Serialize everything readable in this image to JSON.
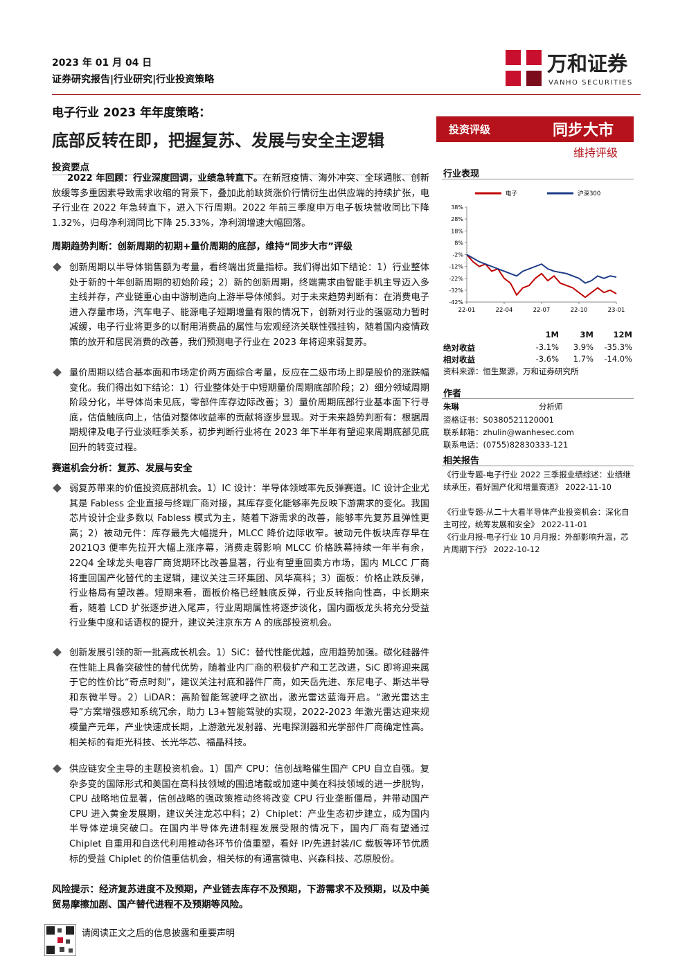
{
  "header": {
    "date": "2023 年 01 月 04 日",
    "category": "证券研究报告|行业研究|行业投资策略",
    "logo_name": "万和证券",
    "logo_en": "VANHO SECURITIES"
  },
  "title": {
    "line1": "电子行业 2023 年年度策略：",
    "line2": "底部反转在即，把握复苏、发展与安全主逻辑"
  },
  "summary": {
    "heading": "投资要点",
    "review": {
      "lead": "2022 年回顾：行业深度回调，业绩急转直下。",
      "text": "在新冠疫情、海外冲突、全球通胀、创新放缓等多重因素导致需求收缩的背景下，叠加此前缺货涨价行情衍生出供应端的持续扩张，电子行业在 2022 年急转直下，进入下行周期。2022 年前三季度申万电子板块营收同比下降 1.32%，归母净利润同比下降 25.33%，净利润增速大幅回落。"
    },
    "sections": [
      {
        "heading": "周期趋势判断：创新周期的初期+量价周期的底部，维持“同步大市”评级",
        "bullets": [
          "创新周期以半导体销售额为考量，看终端出货量指标。我们得出如下结论：1）行业整体处于新的十年创新周期的初始阶段；2）新的创新周期，终端需求由智能手机主导迈入多主线并存，产业链重心由中游制造向上游半导体倾斜。对于未来趋势判断有：在消费电子进入存量市场，汽车电子、能源电子短期增量有限的情况下，创新对行业的强驱动力暂时减缓，电子行业将更多的以耐用消费品的属性与宏观经济关联性强挂钩，随着国内疫情政策的放开和居民消费的改善，我们预测电子行业在 2023 年将迎来弱复苏。",
          "量价周期以结合基本面和市场定价两方面综合考量，反应在二级市场上即是股价的涨跌幅变化。我们得出如下结论：1）行业整体处于中短期量价周期底部阶段；2）细分领域周期阶段分化，半导体尚未见底，零部件库存边际改善；3）量价周期底部行业基本面下行寻底，估值触底向上，估值对整体收益率的贡献将逐步显现。对于未来趋势判断有：根据周期规律及电子行业淡旺季关系，初步判断行业将在 2023 年下半年有望迎来周期底部见底回升的转变过程。"
        ]
      },
      {
        "heading": "赛道机会分析：复苏、发展与安全",
        "bullets": [
          "弱复苏带来的价值投资底部机会。1）IC 设计：半导体领域率先反弹赛道。IC 设计企业尤其是 Fabless 企业直接与终端厂商对接，其库存变化能够率先反映下游需求的变化。我国芯片设计企业多数以 Fabless 模式为主，随着下游需求的改善，能够率先复苏且弹性更高；2）被动元件：库存最先大幅提升，MLCC 降价边际收窄。被动元件板块库存早在 2021Q3 便率先拉开大幅上涨序幕，消费走弱影响 MLCC 价格跌幕持续一年半有余，22Q4 全球龙头电容厂商货期环比改善显著，行业有望重回卖方市场，国内 MLCC 厂商将重回国产化替代的主逻辑，建议关注三环集团、风华高科；3）面板：价格止跌反弹，行业格局有望改善。短期来看，面板价格已经触底反弹，行业反转指向性高，中长期来看，随着 LCD 扩张逐步进入尾声，行业周期属性将逐步淡化，国内面板龙头将充分受益行业集中度和话语权的提升，建议关注京东方 A 的底部投资机会。",
          "创新发展引领的新一批高成长机会。1）SiC：替代性能优越，应用趋势加强。碳化硅器件在性能上具备突破性的替代优势，随着业内厂商的积极扩产和工艺改进，SiC 即将迎来属于它的性价比“奇点时刻”，建议关注衬底和器件厂商，如天岳先进、东尼电子、斯达半导和东微半导。2）LiDAR：高阶智能驾驶呼之欲出，激光雷达蓝海开启。“激光雷达主导”方案增强感知系统冗余，助力 L3+智能驾驶的实现，2022-2023 年激光雷达迎来规模量产元年，产业快速成长期，上游激光发射器、光电探测器和光学部件厂商确定性高。相关标的有炬光科技、长光华芯、福晶科技。",
          "供应链安全主导的主题投资机会。1）国产 CPU：信创战略催生国产 CPU 自立自强。复杂多变的国际形式和美国在高科技领域的围追堵截或加速中美在科技领域的进一步脱钩，CPU 战略地位显著，信创战略的强政策推动终将改变 CPU 行业垄断僵局，并带动国产 CPU 进入黄金发展期，建议关注龙芯中科；2）Chiplet：产业生态初步建立，成为国内半导体逆境突破口。在国内半导体先进制程发展受限的情况下，国内厂商有望通过 Chiplet 自重用和自迭代利用推动各环节价值重塑，看好 IP/先进封装/IC 载板等环节优质标的受益 Chiplet 的价值重估机会，相关标的有通富微电、兴森科技、芯原股份。"
        ]
      }
    ],
    "risk": "风险提示：经济复苏进度不及预期，产业链去库存不及预期，下游需求不及预期，以及中美贸易摩擦加剧、国产替代进程不及预期等风险。"
  },
  "rating": {
    "label": "投资评级",
    "value": "同步大市",
    "note": "维持评级"
  },
  "performance": {
    "heading": "行业表现",
    "chart_data": {
      "type": "line",
      "x": [
        0,
        0.5,
        1,
        1.5,
        2,
        2.5,
        3,
        3.5,
        4,
        4.5,
        5,
        5.5,
        6,
        6.5,
        7,
        7.5,
        8,
        8.5,
        9,
        9.5,
        10,
        10.5,
        11,
        11.5,
        12
      ],
      "series": [
        {
          "name": "电子",
          "color": "#c00000",
          "values": [
            -2,
            -8,
            -12,
            -10,
            -16,
            -14,
            -22,
            -26,
            -36,
            -30,
            -28,
            -22,
            -18,
            -24,
            -20,
            -26,
            -28,
            -30,
            -34,
            -38,
            -34,
            -30,
            -34,
            -32,
            -35
          ]
        },
        {
          "name": "沪深300",
          "color": "#1f3c88",
          "values": [
            -2,
            -5,
            -8,
            -10,
            -12,
            -14,
            -16,
            -18,
            -20,
            -16,
            -14,
            -12,
            -10,
            -14,
            -16,
            -17,
            -18,
            -20,
            -22,
            -26,
            -24,
            -20,
            -22,
            -20,
            -21
          ]
        }
      ],
      "xlim": [
        0,
        12
      ],
      "xticks": [
        {
          "value": 0,
          "label": "22-01"
        },
        {
          "value": 3,
          "label": "22-04"
        },
        {
          "value": 6,
          "label": "22-07"
        },
        {
          "value": 9,
          "label": "22-10"
        },
        {
          "value": 12,
          "label": "23-01"
        }
      ],
      "ylim": [
        -42,
        38
      ],
      "yticks": [
        {
          "value": 38,
          "label": "38%"
        },
        {
          "value": 28,
          "label": "28%"
        },
        {
          "value": 18,
          "label": "18%"
        },
        {
          "value": 8,
          "label": "8%"
        },
        {
          "value": -2,
          "label": "-2%"
        },
        {
          "value": -12,
          "label": "-12%"
        },
        {
          "value": -22,
          "label": "-22%"
        },
        {
          "value": -32,
          "label": "-32%"
        },
        {
          "value": -42,
          "label": "-42%"
        }
      ]
    },
    "returns": {
      "columns": [
        "1M",
        "3M",
        "12M"
      ],
      "rows": [
        {
          "label": "绝对收益",
          "values": [
            "-3.1%",
            "3.9%",
            "-35.3%"
          ]
        },
        {
          "label": "相对收益",
          "values": [
            "-3.6%",
            "1.7%",
            "-14.0%"
          ]
        }
      ]
    },
    "source": "资料来源：恒生聚源，万和证券研究所"
  },
  "author": {
    "heading": "作者",
    "name": "朱琳",
    "role": "分析师",
    "lines": [
      "资格证书：S0380521120001",
      "联系邮箱：zhulin@wanhesec.com",
      "联系电话：(0755)82830333-121"
    ]
  },
  "related": {
    "heading": "相关报告",
    "items": [
      "《行业专题-电子行业 2022 三季报业绩综述：业绩继续承压，看好国产化和增量赛道》 2022-11-10",
      "《行业专题-从二十大看半导体产业投资机会：深化自主可控，统筹发展和安全》 2022-11-01",
      "《行业月报-电子行业 10 月月报：外部影响升温，芯片周期下行》 2022-10-12"
    ]
  },
  "footer": {
    "notice": "请阅读正文之后的信息披露和重要声明"
  }
}
